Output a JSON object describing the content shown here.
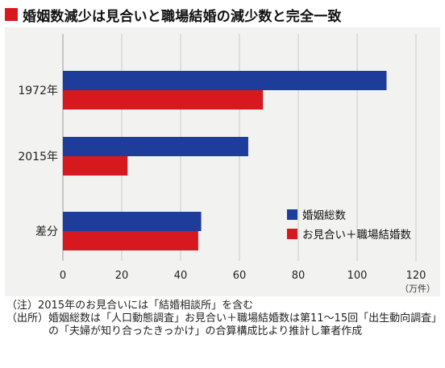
{
  "title": "婚姻数減少は見合いと職場結婚の減少数と完全一致",
  "colors": {
    "title_marker": "#d7191f",
    "series_total": "#1e3c9a",
    "series_miai": "#d7191f"
  },
  "chart_data": {
    "type": "bar",
    "orientation": "horizontal",
    "categories": [
      "1972年",
      "2015年",
      "差分"
    ],
    "series": [
      {
        "name": "婚姻総数",
        "color": "#1e3c9a",
        "values": [
          110,
          63,
          47
        ]
      },
      {
        "name": "お見合い＋職場結婚数",
        "color": "#d7191f",
        "values": [
          68,
          22,
          46
        ]
      }
    ],
    "xlim": [
      0,
      120
    ],
    "xticks": [
      0,
      20,
      40,
      60,
      80,
      100,
      120
    ],
    "xunit": "（万件）",
    "grid": true,
    "legend_position": "right-middle"
  },
  "notes": [
    {
      "label": "（注）",
      "text": "2015年のお見合いには「結婚相談所」を含む"
    },
    {
      "label": "（出所）",
      "text": "婚姻総数は「人口動態調査」お見合い＋職場結婚数は第11～15回「出生動向調査」の「夫婦が知り合ったきっかけ」の合算構成比より推計し筆者作成"
    }
  ]
}
